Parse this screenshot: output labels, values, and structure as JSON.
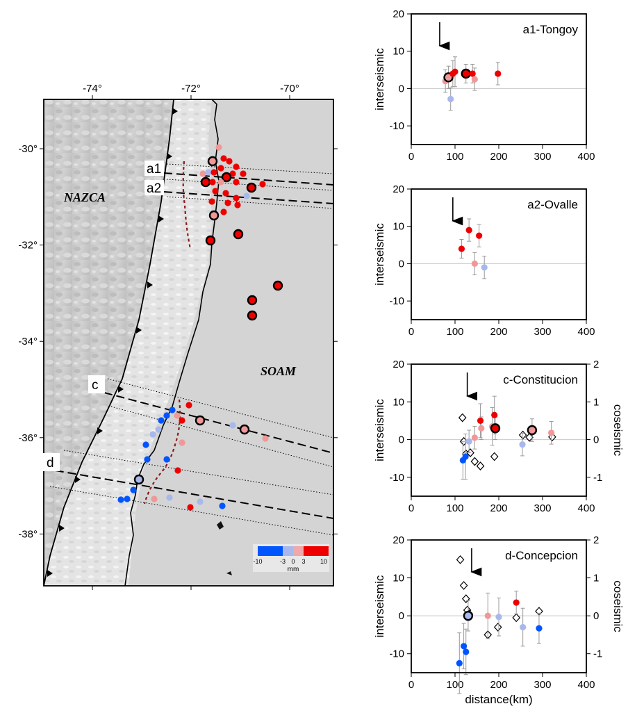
{
  "map": {
    "lon_ticks": [
      {
        "lon": -74,
        "label": "-74°"
      },
      {
        "lon": -72,
        "label": "-72°"
      },
      {
        "lon": -70,
        "label": "-70°"
      }
    ],
    "lat_ticks": [
      {
        "lat": -30,
        "label": "-30°"
      },
      {
        "lat": -32,
        "label": "-32°"
      },
      {
        "lat": -34,
        "label": "-34°"
      },
      {
        "lat": -36,
        "label": "-36°"
      },
      {
        "lat": -38,
        "label": "-38°"
      }
    ],
    "region_labels": {
      "nazca": "NAZCA",
      "soam": "SOAM"
    },
    "profile_labels": {
      "a1": "a1",
      "a2": "a2",
      "c": "c",
      "d": "d"
    },
    "colorbar": {
      "tick_labels": [
        "-10",
        "-3",
        "0",
        "3",
        "10"
      ],
      "unit": "mm",
      "colors": [
        "#0055ff",
        "#a8b8ec",
        "#f0a8a8",
        "#ee0000"
      ]
    },
    "colors": {
      "strong_red": "#ee0000",
      "light_red": "#f09898",
      "light_blue": "#a8b8ec",
      "strong_blue": "#0055ff"
    }
  },
  "chart_data": [
    {
      "type": "scatter",
      "title": "a1-Tongoy",
      "xlabel": "",
      "ylabel": "interseismic",
      "xlim": [
        0,
        400
      ],
      "ylim": [
        -15,
        20
      ],
      "xticks": [
        0,
        100,
        200,
        300,
        400
      ],
      "yticks": [
        -10,
        0,
        10,
        20
      ],
      "arrow_x": 65,
      "points": [
        {
          "x": 78,
          "y": 2,
          "err": 3,
          "color": "#f09898",
          "ring": false
        },
        {
          "x": 85,
          "y": 3,
          "err": 3,
          "color": "#f09898",
          "ring": true
        },
        {
          "x": 90,
          "y": -2.8,
          "err": 3,
          "color": "#a8b8ec",
          "ring": false
        },
        {
          "x": 95,
          "y": 4,
          "err": 3.5,
          "color": "#ee0000",
          "ring": false
        },
        {
          "x": 100,
          "y": 4.5,
          "err": 4,
          "color": "#ee0000",
          "ring": false
        },
        {
          "x": 125,
          "y": 4,
          "err": 2.5,
          "color": "#ee0000",
          "ring": true
        },
        {
          "x": 140,
          "y": 4,
          "err": 2.5,
          "color": "#ee0000",
          "ring": false
        },
        {
          "x": 145,
          "y": 2.5,
          "err": 3,
          "color": "#f09898",
          "ring": false
        },
        {
          "x": 198,
          "y": 4,
          "err": 3,
          "color": "#ee0000",
          "ring": false
        }
      ]
    },
    {
      "type": "scatter",
      "title": "a2-Ovalle",
      "xlabel": "",
      "ylabel": "interseismic",
      "xlim": [
        0,
        400
      ],
      "ylim": [
        -15,
        20
      ],
      "xticks": [
        0,
        100,
        200,
        300,
        400
      ],
      "yticks": [
        -10,
        0,
        10,
        20
      ],
      "arrow_x": 95,
      "points": [
        {
          "x": 115,
          "y": 4,
          "err": 2.5,
          "color": "#ee0000",
          "ring": false
        },
        {
          "x": 132,
          "y": 9,
          "err": 3,
          "color": "#ee0000",
          "ring": false
        },
        {
          "x": 145,
          "y": 0,
          "err": 3,
          "color": "#f09898",
          "ring": false
        },
        {
          "x": 155,
          "y": 7.5,
          "err": 3,
          "color": "#ee0000",
          "ring": false
        },
        {
          "x": 167,
          "y": -1,
          "err": 3,
          "color": "#a8b8ec",
          "ring": false
        }
      ]
    },
    {
      "type": "scatter",
      "title": "c-Constitucion",
      "xlabel": "",
      "ylabel": "interseismic",
      "y2label": "coseismic",
      "xlim": [
        0,
        400
      ],
      "ylim": [
        -15,
        20
      ],
      "y2lim": [
        -1.5,
        2
      ],
      "xticks": [
        0,
        100,
        200,
        300,
        400
      ],
      "yticks": [
        -10,
        0,
        10,
        20
      ],
      "y2ticks": [
        -1,
        0,
        1,
        2
      ],
      "arrow_x": 128,
      "points": [
        {
          "x": 118,
          "y": -5.5,
          "err": 5,
          "color": "#0055ff",
          "ring": false
        },
        {
          "x": 124,
          "y": -4.5,
          "err": 6,
          "color": "#0055ff",
          "ring": false
        },
        {
          "x": 132,
          "y": -0.5,
          "err": 3,
          "color": "#a8b8ec",
          "ring": false
        },
        {
          "x": 145,
          "y": 0.5,
          "err": 3,
          "color": "#f09898",
          "ring": false
        },
        {
          "x": 158,
          "y": 5,
          "err": 4.5,
          "color": "#ee0000",
          "ring": false
        },
        {
          "x": 160,
          "y": 3,
          "err": 3,
          "color": "#f09898",
          "ring": false
        },
        {
          "x": 185,
          "y": 3.5,
          "err": 5,
          "color": "#f09898",
          "ring": false
        },
        {
          "x": 190,
          "y": 6.5,
          "err": 5,
          "color": "#ee0000",
          "ring": false
        },
        {
          "x": 192,
          "y": 3,
          "err": 3,
          "color": "#ee0000",
          "ring": true
        },
        {
          "x": 254,
          "y": -1.3,
          "err": 3,
          "color": "#a8b8ec",
          "ring": false
        },
        {
          "x": 276,
          "y": 2.5,
          "err": 3,
          "color": "#f09898",
          "ring": true
        },
        {
          "x": 320,
          "y": 1.8,
          "err": 3,
          "color": "#f09898",
          "ring": false
        }
      ],
      "coseismic": [
        {
          "x": 117,
          "y": 0.58
        },
        {
          "x": 120,
          "y": -0.05
        },
        {
          "x": 125,
          "y": -0.38
        },
        {
          "x": 135,
          "y": -0.35
        },
        {
          "x": 145,
          "y": -0.58
        },
        {
          "x": 158,
          "y": -0.7
        },
        {
          "x": 190,
          "y": -0.45
        },
        {
          "x": 193,
          "y": 0.3
        },
        {
          "x": 255,
          "y": 0.12
        },
        {
          "x": 270,
          "y": 0.06
        },
        {
          "x": 277,
          "y": 0.22
        },
        {
          "x": 322,
          "y": 0.07
        }
      ]
    },
    {
      "type": "scatter",
      "title": "d-Concepcion",
      "xlabel": "distance(km)",
      "ylabel": "interseismic",
      "y2label": "coseismic",
      "xlim": [
        0,
        400
      ],
      "ylim": [
        -15,
        20
      ],
      "y2lim": [
        -1.5,
        2
      ],
      "xticks": [
        0,
        100,
        200,
        300,
        400
      ],
      "yticks": [
        -10,
        0,
        10,
        20
      ],
      "y2ticks": [
        -1,
        0,
        1,
        2
      ],
      "arrow_x": 138,
      "points": [
        {
          "x": 110,
          "y": -12.5,
          "err": 8,
          "color": "#0055ff",
          "ring": false
        },
        {
          "x": 120,
          "y": -8,
          "err": 6,
          "color": "#0055ff",
          "ring": false
        },
        {
          "x": 125,
          "y": -9.5,
          "err": 6,
          "color": "#0055ff",
          "ring": false
        },
        {
          "x": 130,
          "y": 0,
          "err": 4,
          "color": "#a8b8ec",
          "ring": true
        },
        {
          "x": 175,
          "y": 0,
          "err": 6,
          "color": "#f09898",
          "ring": false
        },
        {
          "x": 200,
          "y": -0.3,
          "err": 5,
          "color": "#a8b8ec",
          "ring": false
        },
        {
          "x": 240,
          "y": 3.5,
          "err": 3,
          "color": "#ee0000",
          "ring": false
        },
        {
          "x": 255,
          "y": -3,
          "err": 5,
          "color": "#a8b8ec",
          "ring": false
        },
        {
          "x": 292,
          "y": -3.3,
          "err": 4,
          "color": "#0055ff",
          "ring": false
        }
      ],
      "coseismic": [
        {
          "x": 112,
          "y": 1.48
        },
        {
          "x": 120,
          "y": 0.8
        },
        {
          "x": 125,
          "y": 0.45
        },
        {
          "x": 128,
          "y": 0.15
        },
        {
          "x": 132,
          "y": 0.05
        },
        {
          "x": 175,
          "y": -0.5
        },
        {
          "x": 198,
          "y": -0.3
        },
        {
          "x": 240,
          "y": -0.05
        },
        {
          "x": 292,
          "y": 0.12
        }
      ]
    }
  ]
}
